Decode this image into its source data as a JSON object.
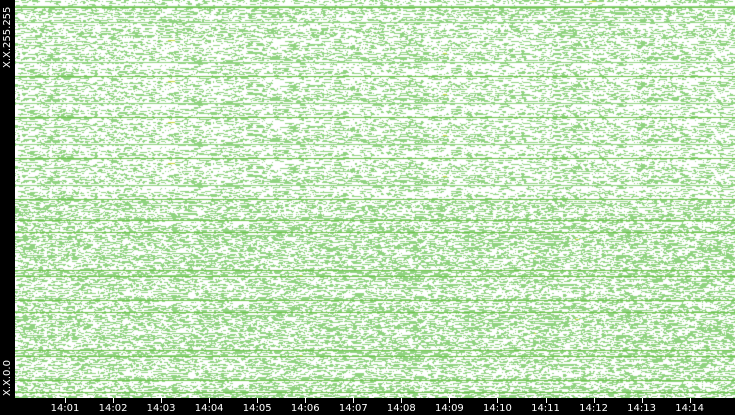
{
  "chart_data": {
    "type": "scatter",
    "title": "",
    "xlabel": "",
    "ylabel": "",
    "x_ticks": [
      "14:01",
      "14:02",
      "14:03",
      "14:04",
      "14:05",
      "14:06",
      "14:07",
      "14:08",
      "14:09",
      "14:10",
      "14:11",
      "14:12",
      "14:13",
      "14:14"
    ],
    "y_ticks": {
      "top": "X.X.255.255",
      "bottom": "X.X.0.0"
    },
    "colors": {
      "point": "#8fd27f",
      "dense": "#6cc24a",
      "highlight": "#c8d83a",
      "background": "#ffffff",
      "frame": "#000000"
    },
    "grid": false
  }
}
